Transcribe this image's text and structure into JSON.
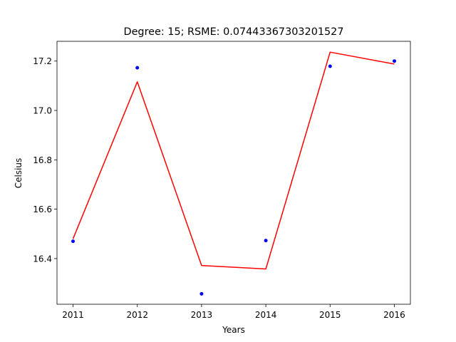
{
  "chart_data": {
    "type": "line",
    "title": "Degree: 15; RSME: 0.07443367303201527",
    "xlabel": "Years",
    "ylabel": "Celsius",
    "x_ticks": [
      "2011",
      "2012",
      "2013",
      "2014",
      "2015",
      "2016"
    ],
    "y_ticks": [
      "16.4",
      "16.6",
      "16.8",
      "17.0",
      "17.2"
    ],
    "xlim": [
      2010.75,
      2016.25
    ],
    "ylim": [
      16.215,
      17.28
    ],
    "grid": false,
    "series": [
      {
        "kind": "scatter",
        "color": "#0000ff",
        "x": [
          2011,
          2012,
          2013,
          2014,
          2015,
          2016
        ],
        "y": [
          16.47,
          17.173,
          16.257,
          16.473,
          17.179,
          17.2
        ]
      },
      {
        "kind": "line",
        "color": "#ff0000",
        "x": [
          2011,
          2012,
          2013,
          2014,
          2015,
          2016
        ],
        "y": [
          16.48,
          17.116,
          16.372,
          16.358,
          17.236,
          17.188
        ]
      }
    ]
  }
}
